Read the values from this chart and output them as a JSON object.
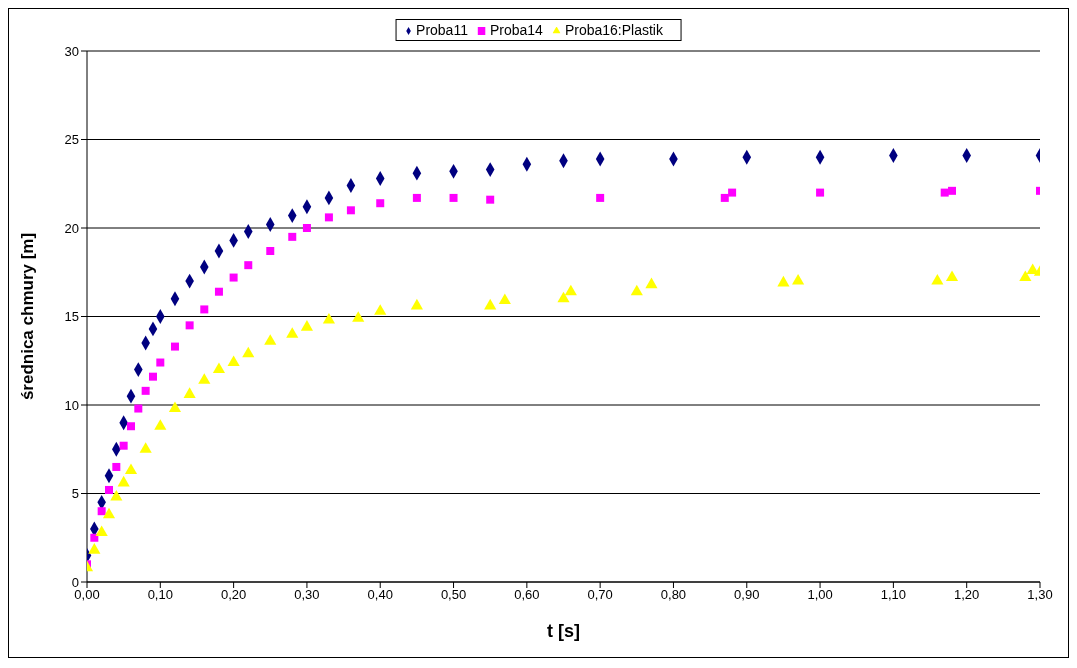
{
  "chart_data": {
    "type": "scatter",
    "xlabel": "t [s]",
    "ylabel": "średnica chmury [m]",
    "legend": "top",
    "grid": "y",
    "xlim": [
      0,
      1.3
    ],
    "ylim": [
      0,
      30
    ],
    "yticks": [
      0,
      5,
      10,
      15,
      20,
      25,
      30
    ],
    "xticks": [
      {
        "value": 0,
        "label": "0,00"
      },
      {
        "value": 0.1,
        "label": "0,10"
      },
      {
        "value": 0.2,
        "label": "0,20"
      },
      {
        "value": 0.3,
        "label": "0,30"
      },
      {
        "value": 0.4,
        "label": "0,40"
      },
      {
        "value": 0.5,
        "label": "0,50"
      },
      {
        "value": 0.6,
        "label": "0,60"
      },
      {
        "value": 0.7,
        "label": "0,70"
      },
      {
        "value": 0.8,
        "label": "0,80"
      },
      {
        "value": 0.9,
        "label": "0,90"
      },
      {
        "value": 1,
        "label": "1,00"
      },
      {
        "value": 1.1,
        "label": "1,10"
      },
      {
        "value": 1.2,
        "label": "1,20"
      },
      {
        "value": 1.3,
        "label": "1,30"
      }
    ],
    "series": [
      {
        "name": "Proba11",
        "color": "#000080",
        "marker": "diamond",
        "x": [
          0,
          0.01,
          0.02,
          0.03,
          0.04,
          0.05,
          0.06,
          0.07,
          0.08,
          0.09,
          0.1,
          0.12,
          0.14,
          0.16,
          0.18,
          0.2,
          0.22,
          0.25,
          0.28,
          0.3,
          0.33,
          0.36,
          0.4,
          0.45,
          0.5,
          0.55,
          0.6,
          0.65,
          0.7,
          0.8,
          0.9,
          1,
          1.1,
          1.2,
          1.3
        ],
        "values": [
          1.5,
          3,
          4.5,
          6,
          7.5,
          9,
          10.5,
          12,
          13.5,
          14.3,
          15,
          16,
          17,
          17.8,
          18.7,
          19.3,
          19.8,
          20.2,
          20.7,
          21.2,
          21.7,
          22.4,
          22.8,
          23.1,
          23.2,
          23.3,
          23.6,
          23.8,
          23.9,
          23.9,
          24,
          24,
          24.1,
          24.1,
          24.1
        ]
      },
      {
        "name": "Proba14",
        "color": "#ff00ff",
        "marker": "square",
        "x": [
          0,
          0.01,
          0.02,
          0.03,
          0.04,
          0.05,
          0.06,
          0.07,
          0.08,
          0.09,
          0.1,
          0.12,
          0.14,
          0.16,
          0.18,
          0.2,
          0.22,
          0.25,
          0.28,
          0.3,
          0.33,
          0.36,
          0.4,
          0.45,
          0.5,
          0.55,
          0.7,
          0.87,
          0.88,
          1.0,
          1.17,
          1.18,
          1.3
        ],
        "values": [
          1,
          2.5,
          4,
          5.2,
          6.5,
          7.7,
          8.8,
          9.8,
          10.8,
          11.6,
          12.4,
          13.3,
          14.5,
          15.4,
          16.4,
          17.2,
          17.9,
          18.7,
          19.5,
          20,
          20.6,
          21,
          21.4,
          21.7,
          21.7,
          21.6,
          21.7,
          21.7,
          22,
          22,
          22,
          22.1,
          22.1
        ]
      },
      {
        "name": "Proba16:Plastik",
        "color": "#ffff00",
        "marker": "triangle",
        "x": [
          0,
          0.01,
          0.02,
          0.03,
          0.04,
          0.05,
          0.06,
          0.08,
          0.1,
          0.12,
          0.14,
          0.16,
          0.18,
          0.2,
          0.22,
          0.25,
          0.28,
          0.3,
          0.33,
          0.37,
          0.4,
          0.45,
          0.55,
          0.57,
          0.65,
          0.66,
          0.75,
          0.77,
          0.95,
          0.97,
          1.16,
          1.18,
          1.28,
          1.29,
          1.3
        ],
        "values": [
          0.8,
          1.8,
          2.8,
          3.8,
          4.8,
          5.6,
          6.3,
          7.5,
          8.8,
          9.8,
          10.6,
          11.4,
          12,
          12.4,
          12.9,
          13.6,
          14,
          14.4,
          14.8,
          14.9,
          15.3,
          15.6,
          15.6,
          15.9,
          16,
          16.4,
          16.4,
          16.8,
          16.9,
          17,
          17,
          17.2,
          17.2,
          17.6,
          17.5
        ]
      }
    ]
  }
}
